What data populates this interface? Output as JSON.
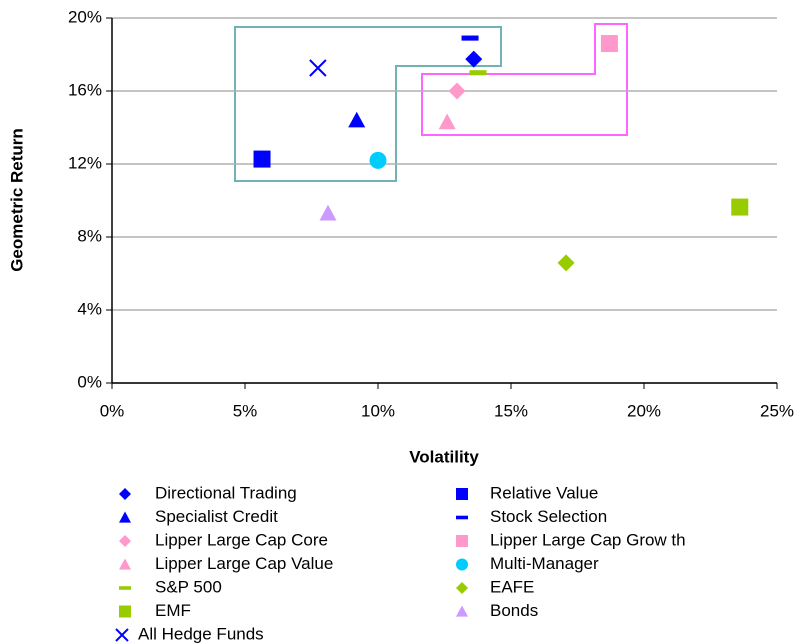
{
  "chart_data": {
    "type": "scatter",
    "xlabel": "Volatility",
    "ylabel": "Geometric Return",
    "xlim": [
      0,
      25
    ],
    "ylim": [
      0,
      20
    ],
    "xticks": [
      {
        "value": 0,
        "label": "0%"
      },
      {
        "value": 5,
        "label": "5%"
      },
      {
        "value": 10,
        "label": "10%"
      },
      {
        "value": 15,
        "label": "15%"
      },
      {
        "value": 20,
        "label": "20%"
      },
      {
        "value": 25,
        "label": "25%"
      }
    ],
    "yticks": [
      {
        "value": 0,
        "label": "0%"
      },
      {
        "value": 4,
        "label": "4%"
      },
      {
        "value": 8,
        "label": "8%"
      },
      {
        "value": 12,
        "label": "12%"
      },
      {
        "value": 16,
        "label": "16%"
      },
      {
        "value": 20,
        "label": "20%"
      }
    ],
    "grid": true,
    "series": [
      {
        "name": "Directional Trading",
        "color": "#0000ff",
        "marker": "diamond",
        "x": [
          13.6
        ],
        "values": [
          17.75
        ]
      },
      {
        "name": "Relative Value",
        "color": "#0000ff",
        "marker": "square",
        "x": [
          5.64
        ],
        "values": [
          12.27
        ]
      },
      {
        "name": "Specialist Credit",
        "color": "#0000ff",
        "marker": "triangle",
        "x": [
          9.2
        ],
        "values": [
          14.4
        ]
      },
      {
        "name": "Stock Selection",
        "color": "#0000ff",
        "marker": "dash",
        "x": [
          13.46
        ],
        "values": [
          18.9
        ]
      },
      {
        "name": "Lipper Large Cap Core",
        "color": "#ff99cc",
        "marker": "diamond",
        "x": [
          12.97
        ],
        "values": [
          16.0
        ]
      },
      {
        "name": "Lipper Large Cap Grow th",
        "color": "#ff99cc",
        "marker": "square",
        "x": [
          18.7
        ],
        "values": [
          18.6
        ]
      },
      {
        "name": "Lipper Large Cap Value",
        "color": "#ff99cc",
        "marker": "triangle",
        "x": [
          12.6
        ],
        "values": [
          14.3
        ]
      },
      {
        "name": "Multi-Manager",
        "color": "#00ccff",
        "marker": "circle",
        "x": [
          10.0
        ],
        "values": [
          12.2
        ]
      },
      {
        "name": "S&P 500",
        "color": "#99cc00",
        "marker": "dash",
        "x": [
          13.76
        ],
        "values": [
          17.0
        ]
      },
      {
        "name": "EAFE",
        "color": "#99cc00",
        "marker": "diamond",
        "x": [
          17.07
        ],
        "values": [
          6.58
        ]
      },
      {
        "name": "EMF",
        "color": "#99cc00",
        "marker": "square",
        "x": [
          23.6
        ],
        "values": [
          9.64
        ]
      },
      {
        "name": "Bonds",
        "color": "#cc99ff",
        "marker": "triangle",
        "x": [
          8.12
        ],
        "values": [
          9.3
        ]
      },
      {
        "name": "All Hedge Funds",
        "color": "#0000ff",
        "marker": "x",
        "x": [
          7.74
        ],
        "values": [
          17.26
        ]
      }
    ]
  }
}
